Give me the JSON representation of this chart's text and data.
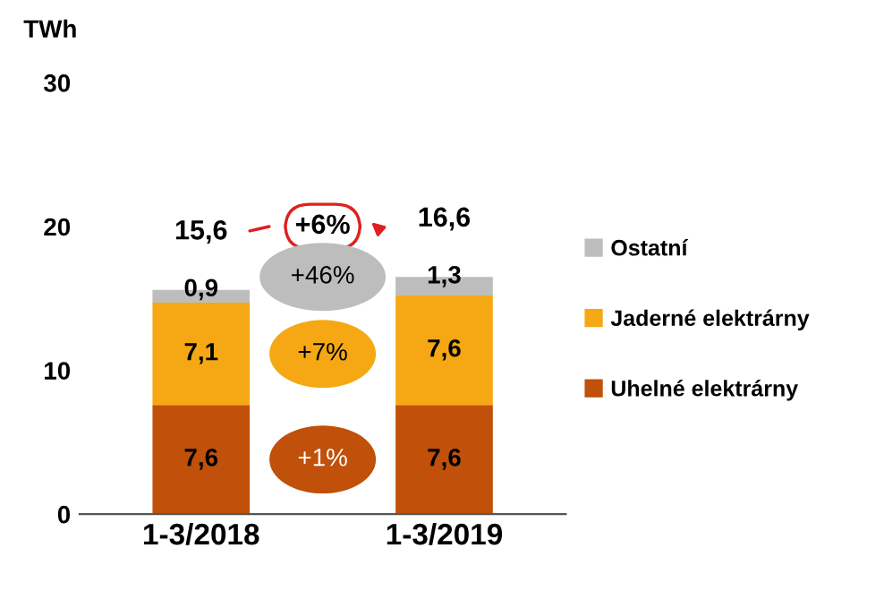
{
  "chart_data": {
    "type": "bar",
    "stacked": true,
    "ylabel": "TWh",
    "categories": [
      "1-3/2018",
      "1-3/2019"
    ],
    "series": [
      {
        "name": "Uhelné elektrárny",
        "color": "#c0500a",
        "values": [
          7.6,
          7.6
        ],
        "value_labels": [
          "7,6",
          "7,6"
        ]
      },
      {
        "name": "Jaderné elektrárny",
        "color": "#f5a814",
        "values": [
          7.1,
          7.6
        ],
        "value_labels": [
          "7,1",
          "7,6"
        ]
      },
      {
        "name": "Ostatní",
        "color": "#bdbdbd",
        "values": [
          0.9,
          1.3
        ],
        "value_labels": [
          "0,9",
          "1,3"
        ]
      }
    ],
    "totals": [
      "15,6",
      "16,6"
    ],
    "annotations": [
      "+6%",
      "+46%",
      "+7%",
      "+1%"
    ],
    "ylim": [
      0,
      30
    ],
    "yticks": [
      0,
      10,
      20,
      30
    ],
    "grid": false,
    "legend": "right"
  }
}
